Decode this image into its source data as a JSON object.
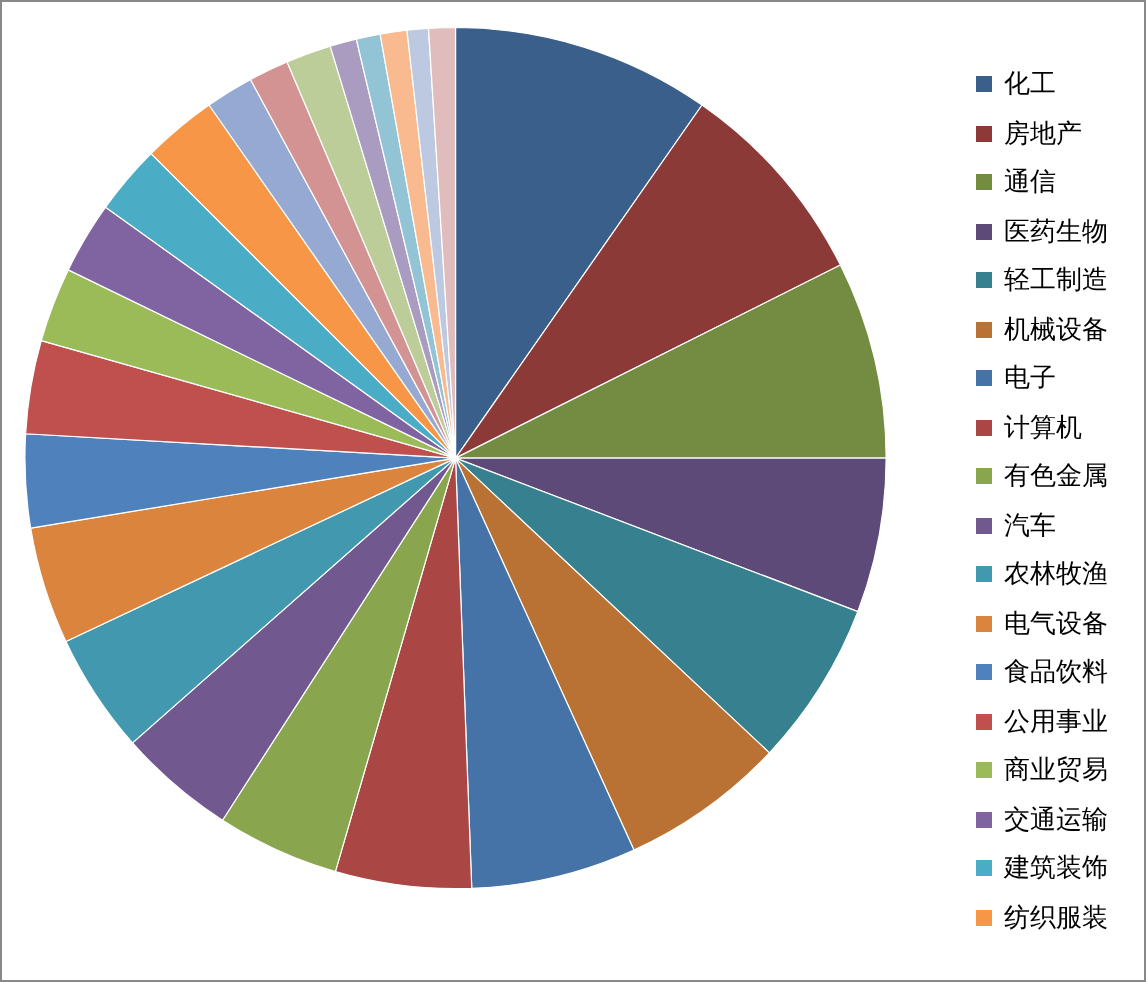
{
  "chart_data": {
    "type": "pie",
    "categories": [
      "化工",
      "房地产",
      "通信",
      "医药生物",
      "轻工制造",
      "机械设备",
      "电子",
      "计算机",
      "有色金属",
      "汽车",
      "农林牧渔",
      "电气设备",
      "食品饮料",
      "公用事业",
      "商业贸易",
      "交通运输",
      "建筑装饰",
      "纺织服装",
      null,
      null,
      null,
      null,
      null,
      null,
      null,
      null
    ],
    "values": [
      9.7,
      7.9,
      7.4,
      5.8,
      6.2,
      6.2,
      6.2,
      5.1,
      4.6,
      4.4,
      4.5,
      4.4,
      3.5,
      3.5,
      2.8,
      2.7,
      2.6,
      2.8,
      1.8,
      1.5,
      1.7,
      1.0,
      0.9,
      1.0,
      0.8,
      1.0
    ],
    "colors": [
      "#3a5f8b",
      "#8c3a38",
      "#748b42",
      "#5e4a78",
      "#36808f",
      "#b97233",
      "#4572a7",
      "#aa4643",
      "#89a54e",
      "#71588f",
      "#4198af",
      "#db843d",
      "#4f81bd",
      "#c0504d",
      "#9bbb59",
      "#8064a2",
      "#4bacc6",
      "#f79646",
      "#95a9d2",
      "#d39393",
      "#bccd99",
      "#a99cc0",
      "#93c4d6",
      "#f8ba8e",
      "#bdc9e1",
      "#e0bcbc"
    ],
    "legend": "right"
  }
}
